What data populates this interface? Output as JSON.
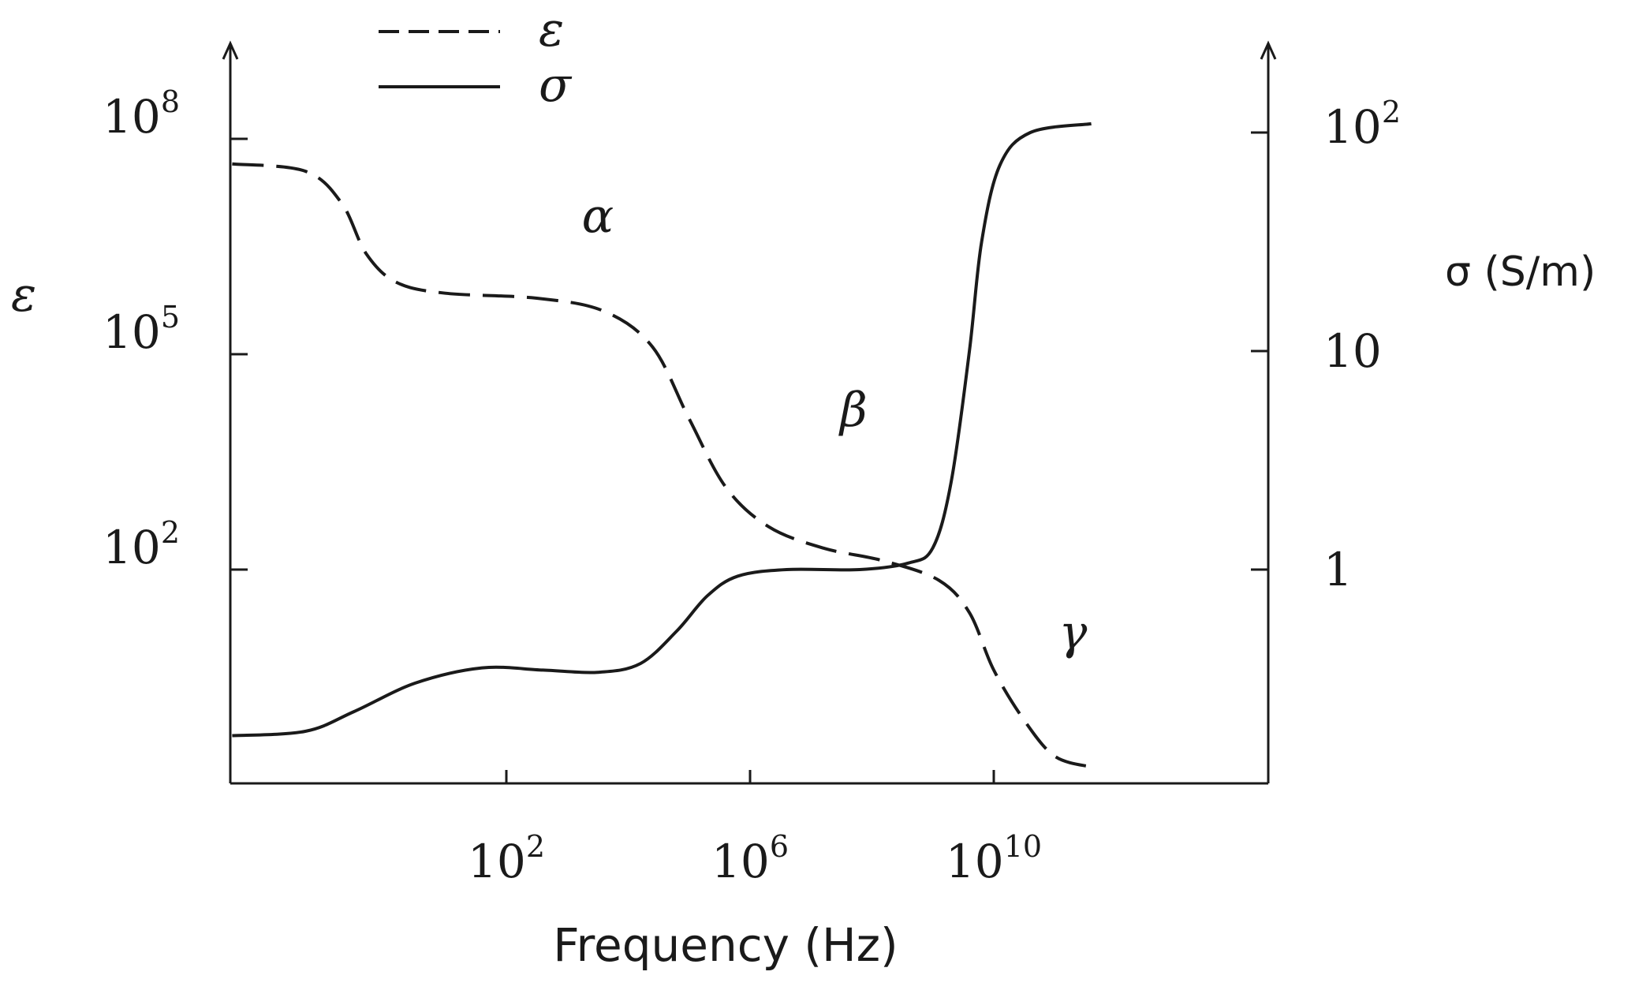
{
  "chart_data": {
    "type": "line",
    "x_axis": {
      "label": "Frequency (Hz)",
      "scale": "log",
      "ticks": [
        {
          "base": "10",
          "exp": "2",
          "value": 100
        },
        {
          "base": "10",
          "exp": "6",
          "value": 1000000
        },
        {
          "base": "10",
          "exp": "10",
          "value": 10000000000
        }
      ]
    },
    "y_axis_left": {
      "label": "ε",
      "scale": "log",
      "ticks": [
        {
          "base": "10",
          "exp": "8",
          "value": 100000000
        },
        {
          "base": "10",
          "exp": "5",
          "value": 100000
        },
        {
          "base": "10",
          "exp": "2",
          "value": 100
        }
      ]
    },
    "y_axis_right": {
      "label": "σ (S/m)",
      "scale": "log",
      "ticks": [
        {
          "base": "10",
          "exp": "2",
          "value": 100
        },
        {
          "text": "10",
          "value": 10
        },
        {
          "text": "1",
          "value": 1
        }
      ]
    },
    "legend": {
      "position": "top-left",
      "entries": [
        {
          "series": "epsilon",
          "label": "ε",
          "style": "dashed"
        },
        {
          "series": "sigma",
          "label": "σ",
          "style": "solid"
        }
      ]
    },
    "annotations": [
      {
        "text": "α",
        "x_log10": 3.5,
        "y_eps_log10": 6.7
      },
      {
        "text": "β",
        "x_log10": 7.7,
        "y_eps_log10": 4.0
      },
      {
        "text": "γ",
        "x_log10": 11.3,
        "y_eps_log10": 0.9
      }
    ],
    "grid": false,
    "series": [
      {
        "id": "epsilon",
        "name": "ε",
        "axis": "left",
        "style": "dashed",
        "points_log10": [
          [
            -2.5,
            7.65
          ],
          [
            -1.3,
            7.55
          ],
          [
            -0.7,
            7.1
          ],
          [
            -0.3,
            6.4
          ],
          [
            0.2,
            6.0
          ],
          [
            1.0,
            5.85
          ],
          [
            2.5,
            5.78
          ],
          [
            3.6,
            5.6
          ],
          [
            4.4,
            5.1
          ],
          [
            5.0,
            4.1
          ],
          [
            5.6,
            3.15
          ],
          [
            6.3,
            2.6
          ],
          [
            7.2,
            2.3
          ],
          [
            8.2,
            2.12
          ],
          [
            9.1,
            1.85
          ],
          [
            9.6,
            1.4
          ],
          [
            10.0,
            0.6
          ],
          [
            10.5,
            -0.1
          ],
          [
            11.0,
            -0.6
          ],
          [
            11.6,
            -0.75
          ]
        ]
      },
      {
        "id": "sigma",
        "name": "σ",
        "axis": "right",
        "style": "solid",
        "points_log10": [
          [
            -2.5,
            -0.76
          ],
          [
            -1.3,
            -0.74
          ],
          [
            -0.5,
            -0.65
          ],
          [
            0.5,
            -0.52
          ],
          [
            1.6,
            -0.45
          ],
          [
            2.6,
            -0.46
          ],
          [
            3.5,
            -0.47
          ],
          [
            4.2,
            -0.43
          ],
          [
            4.8,
            -0.28
          ],
          [
            5.3,
            -0.12
          ],
          [
            5.8,
            -0.03
          ],
          [
            6.6,
            0.0
          ],
          [
            7.8,
            0.0
          ],
          [
            8.6,
            0.03
          ],
          [
            9.0,
            0.1
          ],
          [
            9.3,
            0.4
          ],
          [
            9.6,
            1.0
          ],
          [
            9.8,
            1.5
          ],
          [
            10.1,
            1.85
          ],
          [
            10.6,
            2.0
          ],
          [
            11.6,
            2.04
          ]
        ]
      }
    ]
  }
}
